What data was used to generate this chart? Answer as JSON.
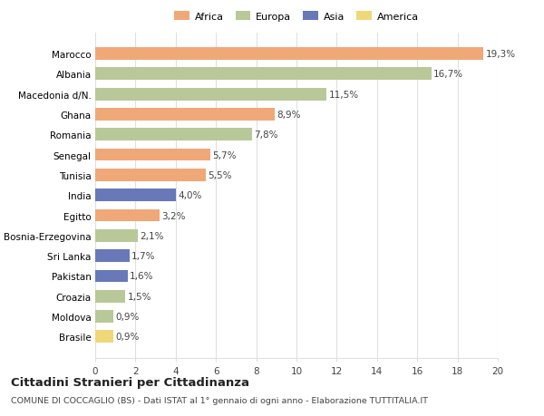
{
  "categories": [
    "Brasile",
    "Moldova",
    "Croazia",
    "Pakistan",
    "Sri Lanka",
    "Bosnia-Erzegovina",
    "Egitto",
    "India",
    "Tunisia",
    "Senegal",
    "Romania",
    "Ghana",
    "Macedonia d/N.",
    "Albania",
    "Marocco"
  ],
  "values": [
    0.9,
    0.9,
    1.5,
    1.6,
    1.7,
    2.1,
    3.2,
    4.0,
    5.5,
    5.7,
    7.8,
    8.9,
    11.5,
    16.7,
    19.3
  ],
  "continents": [
    "America",
    "Europa",
    "Europa",
    "Asia",
    "Asia",
    "Europa",
    "Africa",
    "Asia",
    "Africa",
    "Africa",
    "Europa",
    "Africa",
    "Europa",
    "Europa",
    "Africa"
  ],
  "continent_colors": {
    "Africa": "#F0A878",
    "Europa": "#B8C898",
    "Asia": "#6878B8",
    "America": "#F0D878"
  },
  "legend_order": [
    "Africa",
    "Europa",
    "Asia",
    "America"
  ],
  "title": "Cittadini Stranieri per Cittadinanza",
  "subtitle": "COMUNE DI COCCAGLIO (BS) - Dati ISTAT al 1° gennaio di ogni anno - Elaborazione TUTTITALIA.IT",
  "xlim": [
    0,
    20
  ],
  "xticks": [
    0,
    2,
    4,
    6,
    8,
    10,
    12,
    14,
    16,
    18,
    20
  ],
  "background_color": "#ffffff",
  "grid_color": "#e0e0e0",
  "bar_height": 0.62,
  "label_fontsize": 7.5,
  "tick_fontsize": 7.5,
  "title_fontsize": 9.5,
  "subtitle_fontsize": 6.8
}
